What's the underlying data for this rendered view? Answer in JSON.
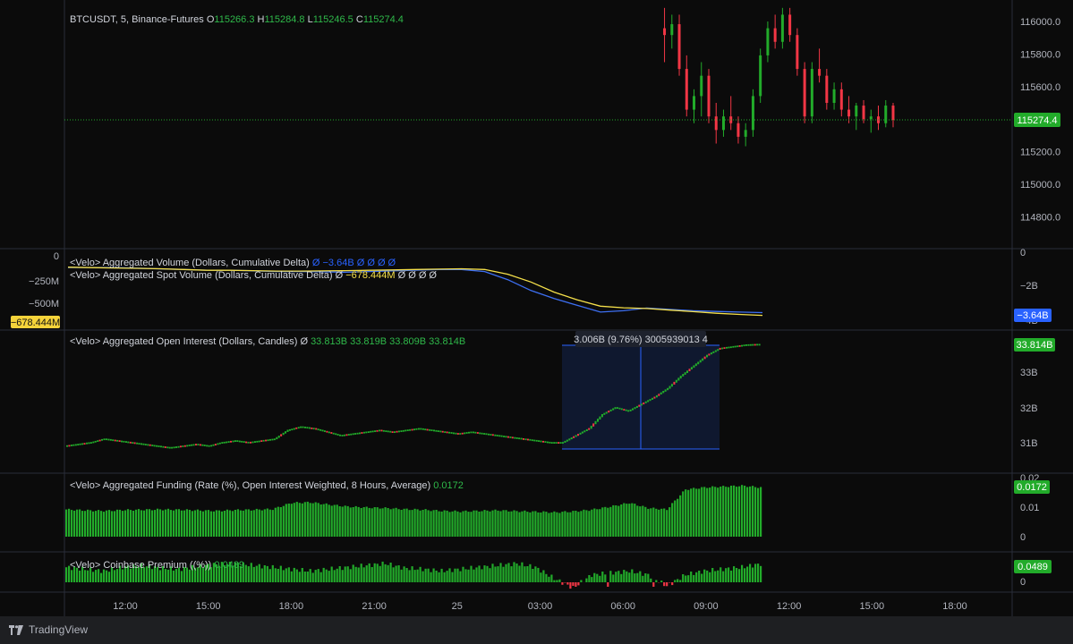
{
  "main": {
    "symbol_line": "BTCUSDT, 5, Binance-Futures",
    "ohlc": {
      "o_label": "O",
      "o": "115266.3",
      "h_label": "H",
      "h": "115284.8",
      "l_label": "L",
      "l": "115246.5",
      "c_label": "C",
      "c": "115274.4"
    },
    "price_ticks": [
      "116000.0",
      "115800.0",
      "115600.0",
      "115400.0",
      "115200.0",
      "115000.0",
      "114800.0"
    ],
    "last_price": "115274.4"
  },
  "delta_pane": {
    "legend1": "<Velo> Aggregated Volume (Dollars, Cumulative Delta)",
    "legend1_vals": "Ø −3.64B Ø Ø Ø Ø",
    "legend2": "<Velo> Aggregated Spot Volume (Dollars, Cumulative Delta)",
    "legend2_vals_prefix": "Ø",
    "legend2_value": "−678.444M",
    "legend2_vals_suffix": "Ø Ø Ø Ø",
    "left_ticks": [
      "0",
      "−250M",
      "−500M"
    ],
    "left_badge": "−678.444M",
    "right_ticks": [
      "0",
      "−2B",
      "−4B"
    ],
    "right_badge": "−3.64B"
  },
  "oi_pane": {
    "legend": "<Velo> Aggregated Open Interest (Dollars, Candles)",
    "legend_vals_prefix": "Ø",
    "legend_vals": "33.813B 33.819B 33.809B 33.814B",
    "ticks": [
      "33B",
      "32B",
      "31B"
    ],
    "badge": "33.814B",
    "measure_label": "3.006B (9.76%) 3005939013 4"
  },
  "funding_pane": {
    "legend": "<Velo> Aggregated Funding (Rate (%), Open Interest Weighted, 8 Hours, Average)",
    "legend_val": "0.0172",
    "ticks": [
      "0.02",
      "0.01",
      "0"
    ],
    "badge": "0.0172"
  },
  "premium_pane": {
    "legend": "<Velo> Coinbase Premium ((%))",
    "legend_val": "0.0489",
    "ticks": [
      "0"
    ],
    "badge": "0.0489"
  },
  "time_axis": [
    "12:00",
    "15:00",
    "18:00",
    "21:00",
    "25",
    "03:00",
    "06:00",
    "09:00",
    "12:00",
    "15:00",
    "18:00"
  ],
  "footer": {
    "brand": "TradingView"
  },
  "colors": {
    "bg": "#0b0b0b",
    "frame": "#1e1f22",
    "up": "#22ab2a",
    "down": "#f23645",
    "yellow": "#f5e04a",
    "blue": "#3d6ff2",
    "text": "#d1d4dc",
    "axis_text": "#b2b5be",
    "green_text": "#2fb94a"
  },
  "chart_data": [
    {
      "type": "candlestick",
      "title": "BTCUSDT, 5, Binance-Futures",
      "ylim": [
        114700,
        116100
      ],
      "x_time_labels": [
        "12:00",
        "15:00",
        "18:00",
        "21:00",
        "25",
        "03:00",
        "06:00",
        "09:00",
        "12:00",
        "15:00",
        "18:00"
      ],
      "candles_from": "07:30",
      "candles": [
        [
          115950,
          116100,
          115700,
          115900
        ],
        [
          115900,
          116050,
          115800,
          115980
        ],
        [
          115980,
          116050,
          115600,
          115650
        ],
        [
          115650,
          115750,
          115300,
          115350
        ],
        [
          115350,
          115500,
          115250,
          115450
        ],
        [
          115450,
          115700,
          115300,
          115600
        ],
        [
          115600,
          115650,
          115250,
          115300
        ],
        [
          115300,
          115400,
          115100,
          115200
        ],
        [
          115200,
          115350,
          115150,
          115300
        ],
        [
          115300,
          115450,
          115200,
          115250
        ],
        [
          115250,
          115300,
          115100,
          115150
        ],
        [
          115150,
          115250,
          115080,
          115200
        ],
        [
          115200,
          115500,
          115150,
          115450
        ],
        [
          115450,
          115800,
          115400,
          115750
        ],
        [
          115750,
          116000,
          115700,
          115950
        ],
        [
          115950,
          116050,
          115800,
          115850
        ],
        [
          115850,
          116100,
          115800,
          116050
        ],
        [
          116050,
          116100,
          115850,
          115900
        ],
        [
          115900,
          115950,
          115600,
          115650
        ],
        [
          115650,
          115700,
          115250,
          115300
        ],
        [
          115300,
          115700,
          115250,
          115650
        ],
        [
          115650,
          115800,
          115550,
          115600
        ],
        [
          115600,
          115650,
          115350,
          115400
        ],
        [
          115400,
          115550,
          115350,
          115500
        ],
        [
          115500,
          115550,
          115300,
          115350
        ],
        [
          115350,
          115450,
          115250,
          115300
        ],
        [
          115300,
          115400,
          115200,
          115380
        ],
        [
          115380,
          115420,
          115250,
          115280
        ],
        [
          115280,
          115350,
          115180,
          115300
        ],
        [
          115300,
          115380,
          115200,
          115250
        ],
        [
          115250,
          115420,
          115220,
          115380
        ],
        [
          115380,
          115400,
          115220,
          115274
        ]
      ],
      "last_price": 115274.4
    },
    {
      "type": "line",
      "title": "Aggregated Volume / Aggregated Spot Volume (Cumulative Delta)",
      "series": [
        {
          "name": "Aggregated Volume (Dollars, Cumulative Delta)",
          "axis": "right",
          "ylim": [
            -4.2,
            0.3
          ],
          "unit": "B",
          "values": [
            -0.3,
            -0.3,
            -0.3,
            -0.35,
            -0.4,
            -0.45,
            -0.5,
            -0.5,
            -0.55,
            -0.6,
            -0.6,
            -0.62,
            -0.65,
            -0.6,
            -0.55,
            -0.5,
            -0.45,
            -0.45,
            -0.6,
            -1.2,
            -2.0,
            -2.6,
            -3.1,
            -3.6,
            -3.5,
            -3.3,
            -3.4,
            -3.5,
            -3.55,
            -3.6,
            -3.64
          ]
        },
        {
          "name": "Aggregated Spot Volume (Dollars, Cumulative Delta)",
          "axis": "left",
          "ylim": [
            -740,
            40
          ],
          "unit": "M",
          "values": [
            -60,
            -65,
            -70,
            -75,
            -80,
            -90,
            -100,
            -100,
            -105,
            -110,
            -110,
            -108,
            -105,
            -100,
            -95,
            -90,
            -85,
            -80,
            -90,
            -150,
            -250,
            -380,
            -480,
            -560,
            -580,
            -590,
            -610,
            -630,
            -650,
            -665,
            -678.444
          ]
        }
      ]
    },
    {
      "type": "line",
      "title": "Aggregated Open Interest (Dollars, Candles)",
      "ylim": [
        30.55,
        34.2
      ],
      "unit": "B",
      "values": [
        30.9,
        30.95,
        31.0,
        31.1,
        31.05,
        31.0,
        30.95,
        30.9,
        30.85,
        30.9,
        30.95,
        30.9,
        31.0,
        31.05,
        31.0,
        31.05,
        31.1,
        31.35,
        31.45,
        31.4,
        31.3,
        31.2,
        31.25,
        31.3,
        31.35,
        31.3,
        31.35,
        31.4,
        31.35,
        31.3,
        31.25,
        31.3,
        31.25,
        31.2,
        31.15,
        31.1,
        31.05,
        31.0,
        31.0,
        31.2,
        31.4,
        31.8,
        32.0,
        31.9,
        32.1,
        32.3,
        32.55,
        32.9,
        33.2,
        33.5,
        33.7,
        33.75,
        33.8,
        33.814
      ],
      "last": 33.814,
      "measure": {
        "text": "3.006B (9.76%) 3005939013 4"
      }
    },
    {
      "type": "bar",
      "title": "Aggregated Funding (Rate (%), Open Interest Weighted, 8 Hours, Average)",
      "ylim": [
        -0.001,
        0.02
      ],
      "value_profile": [
        0.0095,
        0.0092,
        0.009,
        0.0093,
        0.0094,
        0.0095,
        0.0094,
        0.0092,
        0.009,
        0.0093,
        0.0094,
        0.0096,
        0.0118,
        0.012,
        0.0112,
        0.0105,
        0.0102,
        0.01,
        0.0096,
        0.0094,
        0.009,
        0.0088,
        0.009,
        0.0092,
        0.0089,
        0.0087,
        0.0085,
        0.0088,
        0.0094,
        0.0105,
        0.0118,
        0.01,
        0.0095,
        0.0165,
        0.0172,
        0.0175,
        0.0178,
        0.0172
      ],
      "last": 0.0172
    },
    {
      "type": "bar",
      "title": "Coinbase Premium ((%))",
      "ylim": [
        -0.02,
        0.065
      ],
      "value_profile": [
        0.04,
        0.035,
        0.03,
        0.04,
        0.045,
        0.038,
        0.035,
        0.042,
        0.048,
        0.05,
        0.045,
        0.04,
        0.035,
        0.03,
        0.035,
        0.04,
        0.045,
        0.05,
        0.038,
        0.035,
        0.03,
        0.035,
        0.04,
        0.045,
        0.05,
        0.04,
        0.01,
        -0.015,
        0.02,
        0.025,
        0.03,
        0.02,
        -0.01,
        0.02,
        0.03,
        0.035,
        0.04,
        0.0489
      ],
      "last": 0.0489
    }
  ]
}
